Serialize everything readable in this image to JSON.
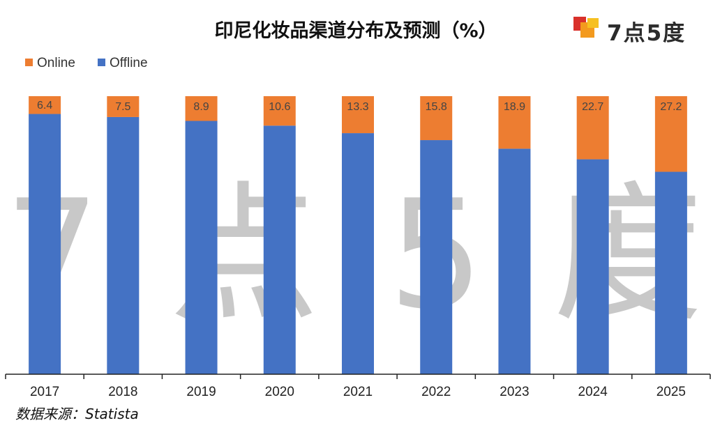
{
  "title": "印尼化妆品渠道分布及预测（%）",
  "logo": {
    "text": "7点5度"
  },
  "watermark": [
    "7",
    "点",
    "5",
    "度"
  ],
  "source": "数据来源：Statista",
  "colors": {
    "online": "#ED7D31",
    "offline": "#4472C4",
    "axis": "#222222",
    "watermark": "#c8c8c8"
  },
  "chart_data": {
    "type": "bar",
    "stacked": true,
    "categories": [
      "2017",
      "2018",
      "2019",
      "2020",
      "2021",
      "2022",
      "2023",
      "2024",
      "2025"
    ],
    "series": [
      {
        "name": "Online",
        "values": [
          6.4,
          7.5,
          8.9,
          10.6,
          13.3,
          15.8,
          18.9,
          22.7,
          27.2
        ]
      },
      {
        "name": "Offline",
        "values": [
          93.6,
          92.5,
          91.1,
          89.4,
          86.7,
          84.2,
          81.1,
          77.3,
          72.8
        ]
      }
    ],
    "legend_order": [
      "Online",
      "Offline"
    ],
    "legend_position": "top-left",
    "ylim": [
      0,
      100
    ],
    "grid": false,
    "data_labels": "Online"
  }
}
